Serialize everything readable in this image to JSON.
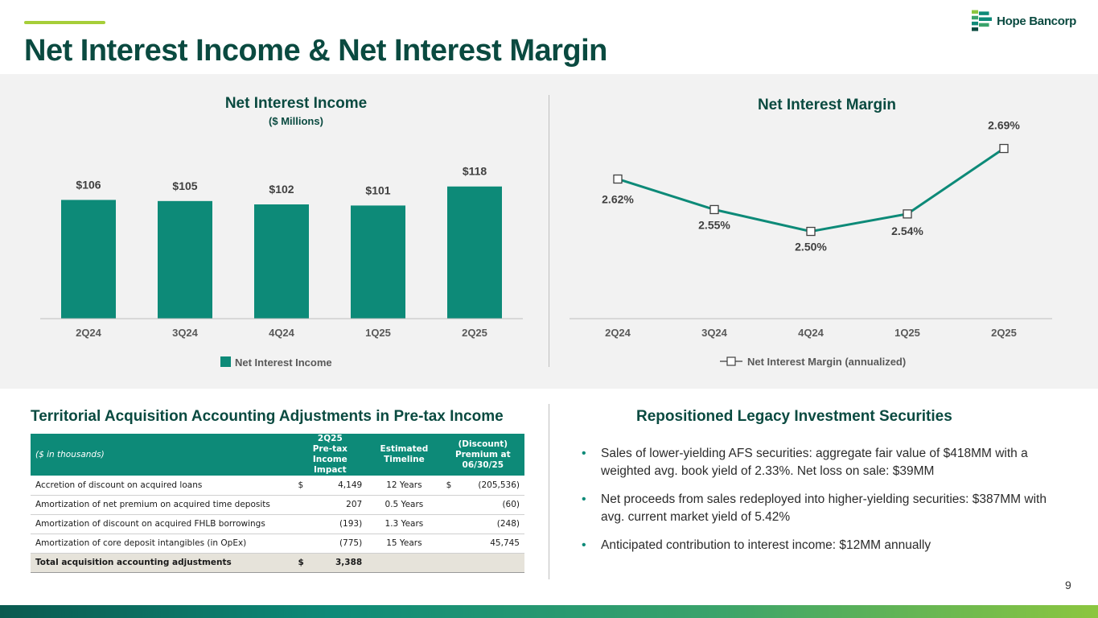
{
  "header": {
    "title": "Net Interest Income & Net Interest Margin",
    "logo_text": "Hope Bancorp",
    "page_number": "9"
  },
  "colors": {
    "brand_dark": "#0a4a40",
    "brand_teal": "#0d8a78",
    "accent_green": "#a6ce39"
  },
  "chart_data": [
    {
      "type": "bar",
      "title": "Net Interest Income",
      "subtitle": "($ Millions)",
      "categories": [
        "2Q24",
        "3Q24",
        "4Q24",
        "1Q25",
        "2Q25"
      ],
      "values": [
        106,
        105,
        102,
        101,
        118
      ],
      "labels": [
        "$106",
        "$105",
        "$102",
        "$101",
        "$118"
      ],
      "legend": "Net Interest Income",
      "legend_position": "bottom",
      "ylim": [
        0,
        125
      ]
    },
    {
      "type": "line",
      "title": "Net Interest Margin",
      "categories": [
        "2Q24",
        "3Q24",
        "4Q24",
        "1Q25",
        "2Q25"
      ],
      "values": [
        2.62,
        2.55,
        2.5,
        2.54,
        2.69
      ],
      "labels": [
        "2.62%",
        "2.55%",
        "2.50%",
        "2.54%",
        "2.69%"
      ],
      "legend": "Net Interest Margin (annualized)",
      "legend_position": "bottom",
      "ylim": [
        2.3,
        2.75
      ]
    }
  ],
  "acquisition": {
    "title": "Territorial Acquisition Accounting Adjustments in Pre-tax Income",
    "headers": {
      "label": "($ in thousands)",
      "impact_line1": "2Q25",
      "impact_line2": "Pre-tax Income",
      "impact_line3": "Impact",
      "timeline_line1": "Estimated",
      "timeline_line2": "Timeline",
      "premium_line1": "(Discount)",
      "premium_line2": "Premium at",
      "premium_line3": "06/30/25"
    },
    "rows": [
      {
        "label": "Accretion of discount on acquired loans",
        "sym": "$",
        "impact": "4,149",
        "timeline": "12 Years",
        "sym2": "$",
        "premium": "(205,536)"
      },
      {
        "label": "Amortization of net premium on acquired time deposits",
        "sym": "",
        "impact": "207",
        "timeline": "0.5 Years",
        "sym2": "",
        "premium": "(60)"
      },
      {
        "label": "Amortization of discount on acquired FHLB borrowings",
        "sym": "",
        "impact": "(193)",
        "timeline": "1.3 Years",
        "sym2": "",
        "premium": "(248)"
      },
      {
        "label": "Amortization of core deposit intangibles (in OpEx)",
        "sym": "",
        "impact": "(775)",
        "timeline": "15 Years",
        "sym2": "",
        "premium": "45,745"
      }
    ],
    "total": {
      "label": "Total acquisition accounting adjustments",
      "sym": "$",
      "impact": "3,388"
    }
  },
  "securities": {
    "title": "Repositioned Legacy Investment Securities",
    "bullets": [
      "Sales of lower-yielding AFS securities: aggregate fair value of $418MM with a weighted avg. book yield of 2.33%. Net loss on sale: $39MM",
      "Net proceeds from sales redeployed into higher-yielding securities: $387MM with avg. current market yield of 5.42%",
      "Anticipated contribution to interest income: $12MM annually"
    ]
  }
}
